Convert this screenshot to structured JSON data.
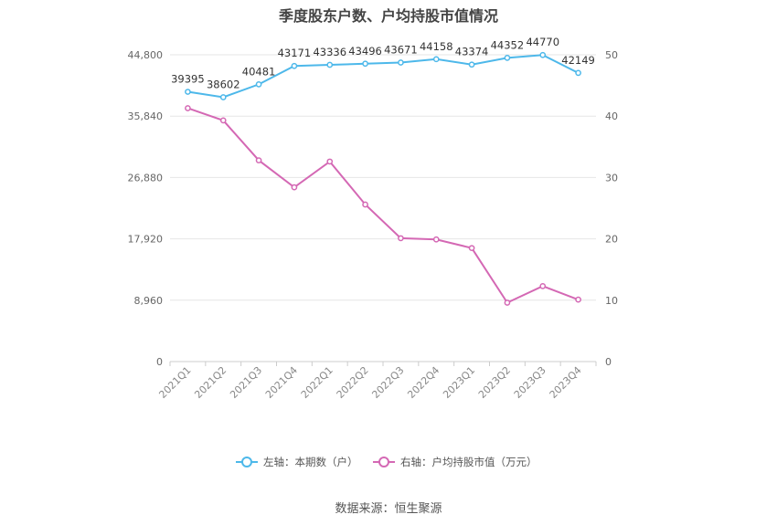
{
  "chart_data": {
    "type": "line",
    "title": "季度股东户数、户均持股市值情况",
    "source": "数据来源：恒生聚源",
    "categories": [
      "2021Q1",
      "2021Q2",
      "2021Q3",
      "2021Q4",
      "2022Q1",
      "2022Q2",
      "2022Q3",
      "2022Q4",
      "2023Q1",
      "2023Q2",
      "2023Q3",
      "2023Q4"
    ],
    "left_axis": {
      "ticks": [
        "0",
        "8,960",
        "17,920",
        "26,880",
        "35,840",
        "44,800"
      ],
      "min": 0,
      "max": 44800
    },
    "right_axis": {
      "ticks": [
        "0",
        "10",
        "20",
        "30",
        "40",
        "50"
      ],
      "min": 0,
      "max": 50
    },
    "grid": true,
    "legend_position": "bottom",
    "series": [
      {
        "name": "左轴：本期数（户）",
        "axis": "left",
        "color": "#4db8ea",
        "values": [
          39395,
          38602,
          40481,
          43171,
          43336,
          43496,
          43671,
          44158,
          43374,
          44352,
          44770,
          42149
        ],
        "labels": [
          "39395",
          "38602",
          "40481",
          "43171",
          "43336",
          "43496",
          "43671",
          "44158",
          "43374",
          "44352",
          "44770",
          "42149"
        ]
      },
      {
        "name": "右轴：户均持股市值（万元）",
        "axis": "right",
        "color": "#d468b4",
        "values": [
          41.3,
          39.3,
          32.8,
          28.4,
          32.6,
          25.6,
          20.1,
          19.9,
          18.5,
          9.6,
          12.3,
          10.1
        ]
      }
    ]
  }
}
